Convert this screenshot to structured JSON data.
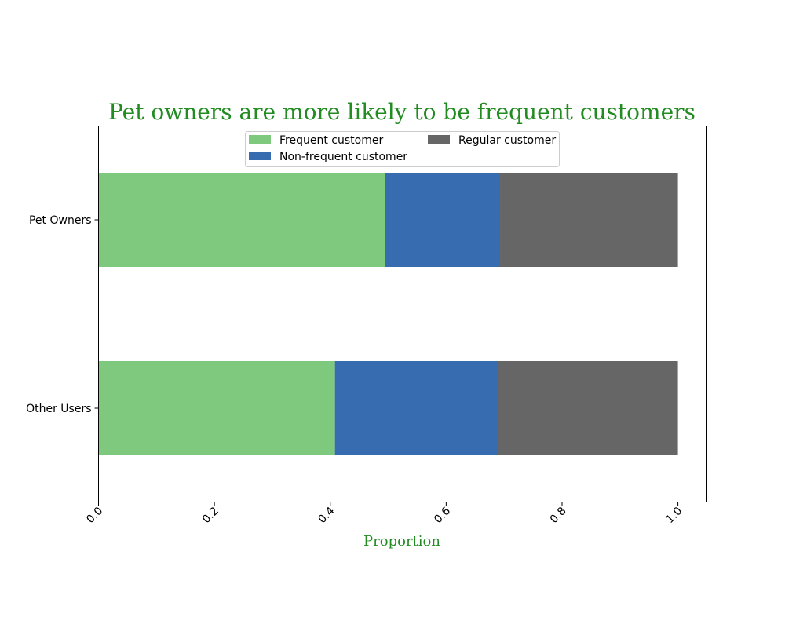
{
  "chart_data": {
    "type": "bar",
    "orientation": "horizontal",
    "stacked": true,
    "title": "Pet owners are more likely to be frequent customers",
    "xlabel": "Proportion",
    "ylabel": "",
    "xlim": [
      0.0,
      1.05
    ],
    "xticks": [
      "0.0",
      "0.2",
      "0.4",
      "0.6",
      "0.8",
      "1.0"
    ],
    "categories": [
      "Pet Owners",
      "Other Users"
    ],
    "series": [
      {
        "name": "Frequent customer",
        "values": [
          0.495,
          0.408
        ],
        "color": "#7fc97f"
      },
      {
        "name": "Non-frequent customer",
        "values": [
          0.198,
          0.281
        ],
        "color": "#386cb0"
      },
      {
        "name": "Regular customer",
        "values": [
          0.307,
          0.311
        ],
        "color": "#666666"
      }
    ],
    "grid": false,
    "legend_position": "upper-center",
    "title_color": "#228b22",
    "xlabel_color": "#228b22"
  }
}
